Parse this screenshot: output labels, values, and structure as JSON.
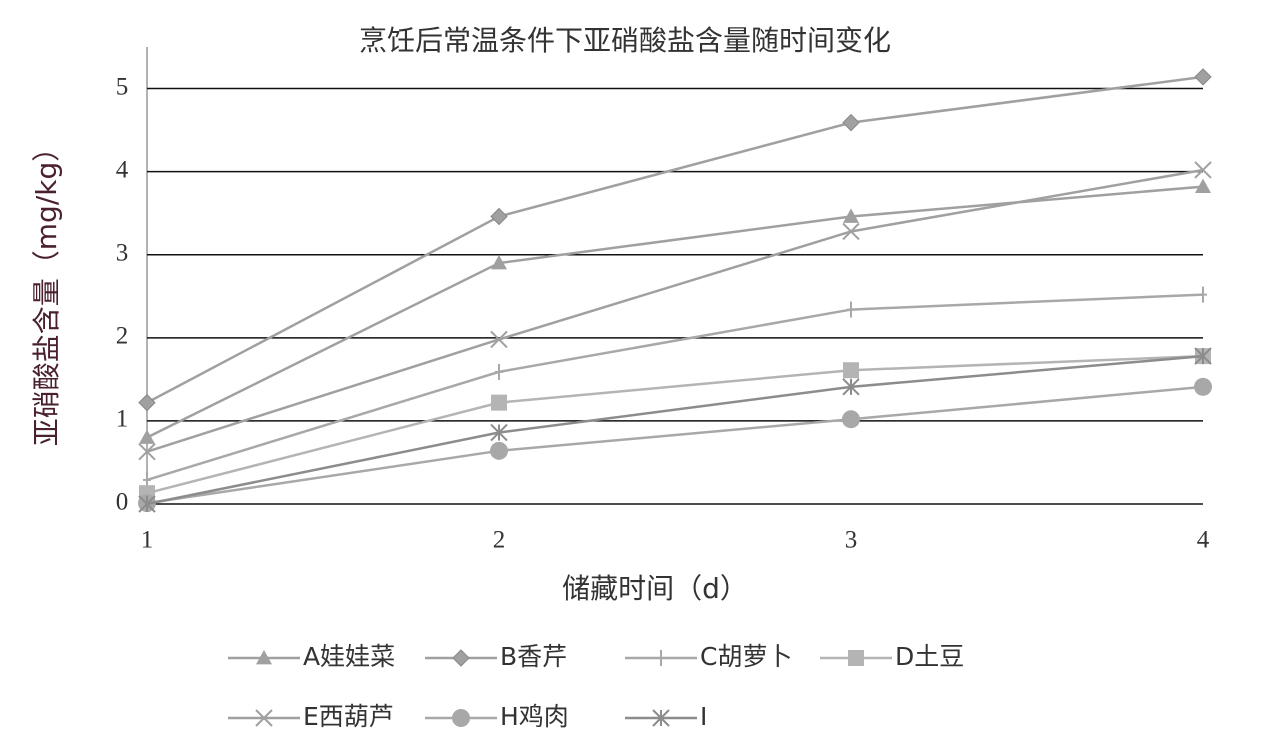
{
  "chart_data": {
    "type": "line",
    "title": "烹饪后常温条件下亚硝酸盐含量随时间变化",
    "x_label": "储藏时间（d）",
    "y_label": "亚硝酸盐含量（mg/kg）",
    "x": [
      1,
      2,
      3,
      4
    ],
    "xlim": [
      1,
      4
    ],
    "xticks": [
      1,
      2,
      3,
      4
    ],
    "ylim": [
      0,
      5.5
    ],
    "yticks": [
      0,
      1,
      2,
      3,
      4,
      5
    ],
    "grid": true,
    "legend": "bottom",
    "series": [
      {
        "name": "A娃娃菜",
        "color": "#a0a0a0",
        "marker": "triangle",
        "values": [
          0.8,
          2.9,
          3.46,
          3.82
        ]
      },
      {
        "name": "B香芹",
        "color": "#a0a0a0",
        "marker": "diamond",
        "values": [
          1.22,
          3.46,
          4.59,
          5.14
        ]
      },
      {
        "name": "C胡萝卜",
        "color": "#a8a8a8",
        "marker": "plus",
        "values": [
          0.29,
          1.59,
          2.34,
          2.52
        ]
      },
      {
        "name": "D土豆",
        "color": "#b4b4b4",
        "marker": "square",
        "values": [
          0.13,
          1.22,
          1.61,
          1.78
        ]
      },
      {
        "name": "E西葫芦",
        "color": "#a0a0a0",
        "marker": "x",
        "values": [
          0.63,
          1.98,
          3.28,
          4.02
        ]
      },
      {
        "name": "H鸡肉",
        "color": "#a8a8a8",
        "marker": "circle",
        "values": [
          0.01,
          0.64,
          1.02,
          1.41
        ]
      },
      {
        "name": "I",
        "color": "#8c8c8c",
        "marker": "asterisk",
        "values": [
          0,
          0.86,
          1.41,
          1.78
        ]
      }
    ]
  }
}
